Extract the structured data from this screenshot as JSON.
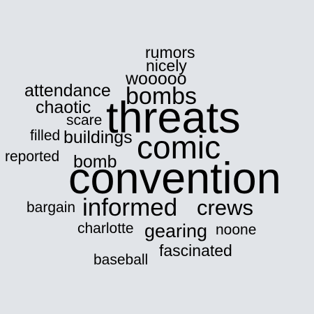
{
  "background_color": "#e1e4e8",
  "text_color": "#000000",
  "words": {
    "rumors": "rumors",
    "nicely": "nicely",
    "wooooo": "wooooo",
    "attendance": "attendance",
    "bombs": "bombs",
    "threats": "threats",
    "chaotic": "chaotic",
    "scare": "scare",
    "filled": "filled",
    "buildings": "buildings",
    "comic": "comic",
    "reported": "reported",
    "bomb": "bomb",
    "convention": "convention",
    "informed": "informed",
    "crews": "crews",
    "bargain": "bargain",
    "charlotte": "charlotte",
    "gearing": "gearing",
    "noone": "noone",
    "fascinated": "fascinated",
    "baseball": "baseball"
  }
}
